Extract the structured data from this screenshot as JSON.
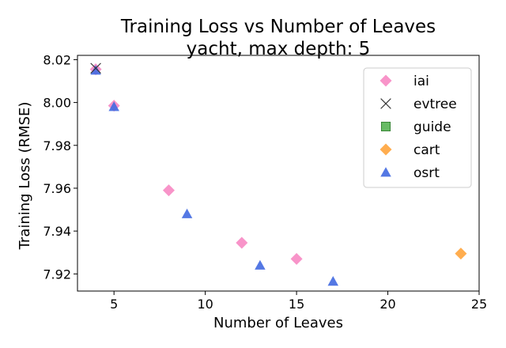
{
  "chart_data": {
    "type": "scatter",
    "title": "Training Loss vs Number of Leaves",
    "subtitle": "yacht, max depth: 5",
    "xlabel": "Number of Leaves",
    "ylabel": "Training Loss (RMSE)",
    "xlim": [
      3,
      25
    ],
    "ylim": [
      7.912,
      8.022
    ],
    "xticks": [
      5,
      10,
      15,
      20,
      25
    ],
    "yticks": [
      7.92,
      7.94,
      7.96,
      7.98,
      8.0,
      8.02
    ],
    "ytick_labels": [
      "7.92",
      "7.94",
      "7.96",
      "7.98",
      "8.00",
      "8.02"
    ],
    "grid": false,
    "legend_position": "top-right",
    "series": [
      {
        "name": "iai",
        "marker": "diamond",
        "color": "#f781bf",
        "points": [
          [
            4,
            8.0155
          ],
          [
            5,
            7.9985
          ],
          [
            8,
            7.959
          ],
          [
            12,
            7.9345
          ],
          [
            15,
            7.927
          ]
        ]
      },
      {
        "name": "evtree",
        "marker": "x",
        "color": "#333333",
        "points": [
          [
            4,
            8.016
          ]
        ]
      },
      {
        "name": "guide",
        "marker": "square",
        "color": "#4daf4a",
        "points": []
      },
      {
        "name": "cart",
        "marker": "diamond",
        "color": "#ff9f30",
        "points": [
          [
            24,
            7.9295
          ]
        ]
      },
      {
        "name": "osrt",
        "marker": "triangle",
        "color": "#4169e1",
        "points": [
          [
            4,
            8.015
          ],
          [
            5,
            7.998
          ],
          [
            9,
            7.948
          ],
          [
            13,
            7.924
          ],
          [
            17,
            7.9165
          ]
        ]
      }
    ]
  }
}
